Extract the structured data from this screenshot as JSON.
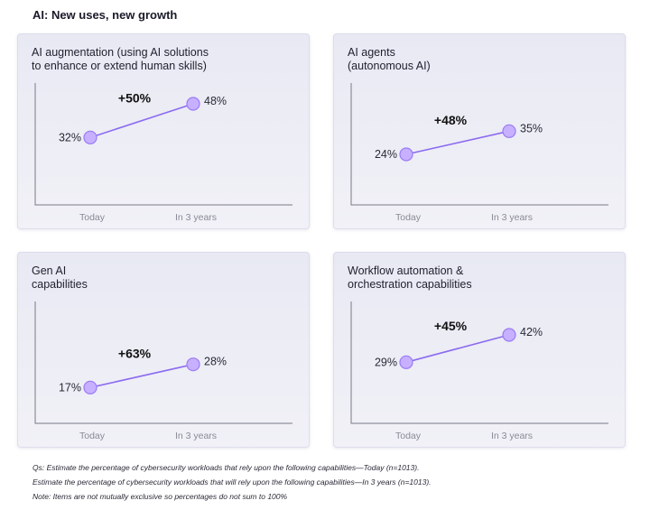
{
  "page_title": "AI: New uses, new growth",
  "chart_data": [
    {
      "type": "line",
      "title": "AI augmentation (using AI solutions\nto enhance or extend human skills)",
      "categories": [
        "Today",
        "In 3 years"
      ],
      "values": [
        32,
        48
      ],
      "value_labels": [
        "32%",
        "48%"
      ],
      "change_label": "+50%",
      "ylim": [
        0,
        60
      ]
    },
    {
      "type": "line",
      "title": "AI agents\n(autonomous AI)",
      "categories": [
        "Today",
        "In 3 years"
      ],
      "values": [
        24,
        35
      ],
      "value_labels": [
        "24%",
        "35%"
      ],
      "change_label": "+48%",
      "ylim": [
        0,
        60
      ]
    },
    {
      "type": "line",
      "title": "Gen AI\ncapabilities",
      "categories": [
        "Today",
        "In 3 years"
      ],
      "values": [
        17,
        28
      ],
      "value_labels": [
        "17%",
        "28%"
      ],
      "change_label": "+63%",
      "ylim": [
        0,
        60
      ]
    },
    {
      "type": "line",
      "title": "Workflow automation &\norchestration capabilities",
      "categories": [
        "Today",
        "In 3 years"
      ],
      "values": [
        29,
        42
      ],
      "value_labels": [
        "29%",
        "42%"
      ],
      "change_label": "+45%",
      "ylim": [
        0,
        60
      ]
    }
  ],
  "footnotes": [
    "Qs: Estimate the percentage of cybersecurity workloads that rely upon  the following capabilities—Today (n=1013).",
    "Estimate the percentage of cybersecurity workloads that will rely upon the following capabilities—In 3 years (n=1013).",
    "Note: Items are not mutually exclusive so percentages do not sum to 100%"
  ],
  "colors": {
    "line": "#8c6bf0",
    "marker_fill": "#c7b0ff",
    "card_bg": "#eceef5"
  }
}
